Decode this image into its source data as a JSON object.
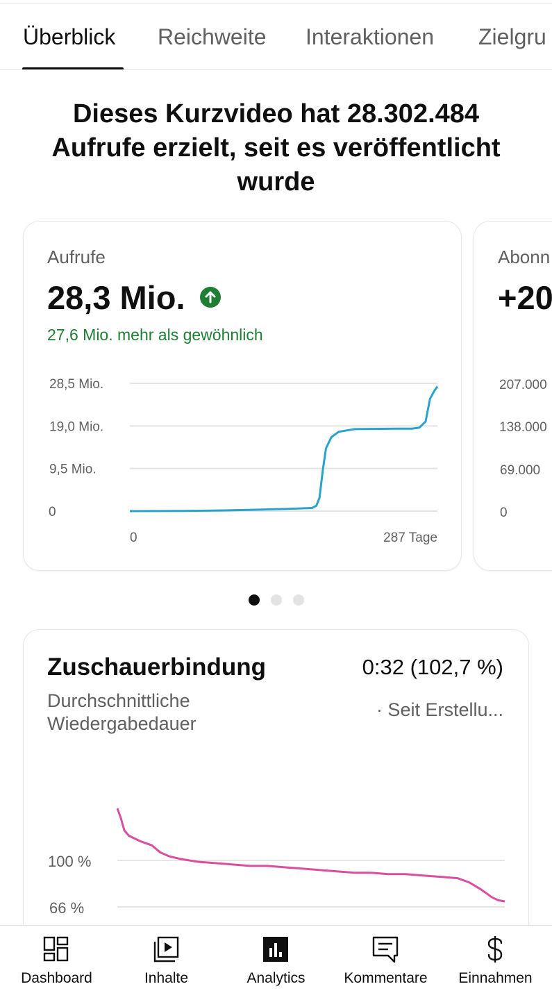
{
  "tabs": [
    {
      "label": "Überblick",
      "active": true
    },
    {
      "label": "Reichweite",
      "active": false
    },
    {
      "label": "Interaktionen",
      "active": false
    },
    {
      "label": "Zielgru",
      "active": false
    }
  ],
  "headline": "Dieses Kurzvideo hat 28.302.484 Aufrufe erzielt, seit es veröffentlicht wurde",
  "cards": [
    {
      "label": "Aufrufe",
      "value": "28,3 Mio.",
      "trend_icon": "arrow-up-icon",
      "comparison": "27,6 Mio. mehr als gewöhnlich",
      "chart_data": {
        "type": "line",
        "y_ticks": [
          "28,5 Mio.",
          "19,0 Mio.",
          "9,5 Mio.",
          "0"
        ],
        "ylim": [
          0,
          28.5
        ],
        "x_ticks": [
          "0",
          "287 Tage"
        ],
        "xlim": [
          0,
          287
        ],
        "series": [
          {
            "color": "#2aa3cc",
            "points": [
              [
                0,
                0
              ],
              [
                50,
                0.05
              ],
              [
                88,
                0.15
              ],
              [
                115,
                0.3
              ],
              [
                148,
                0.5
              ],
              [
                170,
                0.7
              ],
              [
                174,
                1.2
              ],
              [
                177,
                3
              ],
              [
                180,
                9
              ],
              [
                183,
                14
              ],
              [
                188,
                16.5
              ],
              [
                195,
                17.7
              ],
              [
                210,
                18.3
              ],
              [
                250,
                18.4
              ],
              [
                263,
                18.4
              ],
              [
                270,
                18.6
              ],
              [
                276,
                20
              ],
              [
                280,
                25
              ],
              [
                284,
                26.8
              ],
              [
                287,
                27.8
              ]
            ]
          }
        ]
      }
    },
    {
      "label": "Abonn",
      "value": "+20",
      "y_ticks": [
        "207.000",
        "138.000",
        "69.000",
        "0"
      ]
    }
  ],
  "pager": {
    "count": 3,
    "active_index": 0
  },
  "retention": {
    "title": "Zuschauerbindung",
    "value": "0:32 (102,7 %)",
    "subtitle": "Durchschnittliche Wiedergabedauer",
    "period": "· Seit Erstellu...",
    "chart_data": {
      "type": "line",
      "y_ticks": [
        "100 %",
        "66 %"
      ],
      "series": [
        {
          "color": "#d94fa0",
          "points": [
            [
              0,
              138
            ],
            [
              3,
              131
            ],
            [
              6,
              122
            ],
            [
              10,
              118
            ],
            [
              15,
              116
            ],
            [
              20,
              114
            ],
            [
              30,
              111
            ],
            [
              37,
              106
            ],
            [
              45,
              103
            ],
            [
              55,
              101
            ],
            [
              70,
              99
            ],
            [
              85,
              98
            ],
            [
              100,
              97
            ],
            [
              115,
              96
            ],
            [
              130,
              96
            ],
            [
              145,
              95
            ],
            [
              160,
              94
            ],
            [
              175,
              93
            ],
            [
              190,
              92
            ],
            [
              205,
              91
            ],
            [
              220,
              91
            ],
            [
              235,
              90
            ],
            [
              250,
              90
            ],
            [
              265,
              89
            ],
            [
              280,
              88
            ],
            [
              295,
              87
            ],
            [
              305,
              84
            ],
            [
              315,
              79
            ],
            [
              325,
              73
            ],
            [
              330,
              71
            ],
            [
              336,
              70
            ]
          ]
        }
      ]
    }
  },
  "bottom_nav": [
    {
      "label": "Dashboard",
      "icon": "dashboard-icon"
    },
    {
      "label": "Inhalte",
      "icon": "content-icon"
    },
    {
      "label": "Analytics",
      "icon": "analytics-icon",
      "active": true
    },
    {
      "label": "Kommentare",
      "icon": "comments-icon"
    },
    {
      "label": "Einnahmen",
      "icon": "dollar-icon"
    }
  ]
}
